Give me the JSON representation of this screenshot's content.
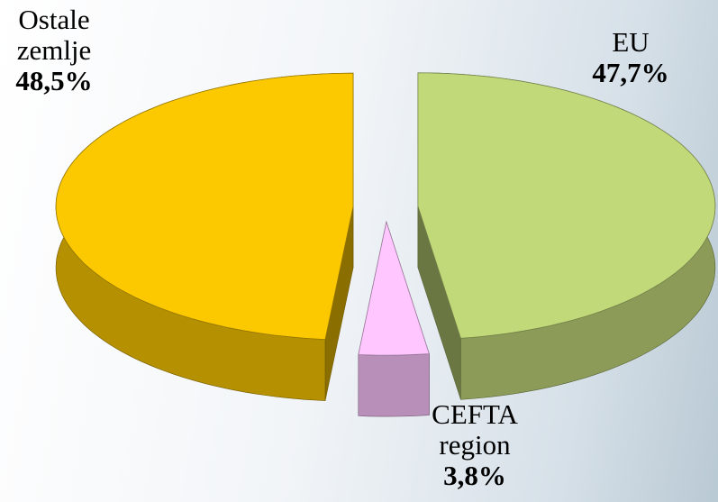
{
  "chart_data": {
    "type": "pie3d",
    "categories": [
      "EU",
      "CEFTA region",
      "Ostale zemlje"
    ],
    "values": [
      47.7,
      3.8,
      48.5
    ],
    "value_labels": [
      "47,7%",
      "3,8%",
      "48,5%"
    ],
    "colors": [
      "#c2d97a",
      "#ffc6ff",
      "#fcc800"
    ]
  }
}
